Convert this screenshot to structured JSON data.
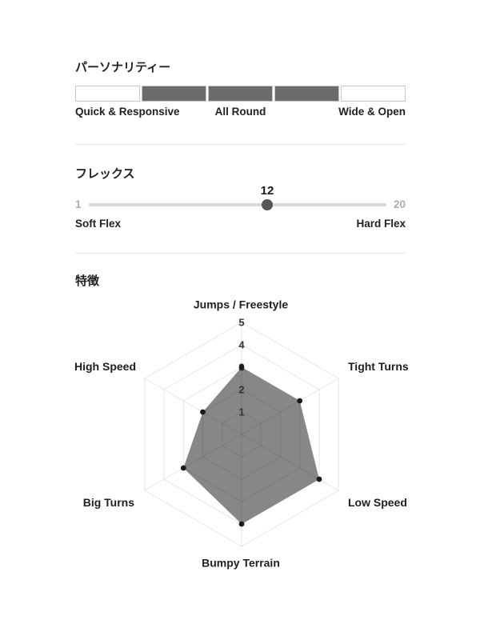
{
  "personality": {
    "title": "パーソナリティー",
    "segments": [
      false,
      true,
      true,
      true,
      false
    ],
    "filled_color": "#6b6b6b",
    "scale_labels": [
      "Quick & Responsive",
      "All Round",
      "Wide & Open"
    ]
  },
  "flex": {
    "title": "フレックス",
    "value": 12,
    "min": 1,
    "max": 20,
    "left_label": "Soft Flex",
    "right_label": "Hard Flex",
    "track_color": "#d8d8d8",
    "thumb_color": "#555555"
  },
  "features": {
    "title": "特徴"
  },
  "chart_data": {
    "type": "radar",
    "title": "特徴",
    "categories": [
      "Jumps / Freestyle",
      "Tight Turns",
      "Low Speed",
      "Bumpy Terrain",
      "Big Turns",
      "High Speed"
    ],
    "values": [
      3,
      3,
      4,
      4,
      3,
      2
    ],
    "ticks": [
      1,
      2,
      3,
      4,
      5
    ],
    "rmax": 5,
    "grid": true,
    "legend": false,
    "fill_color": "#878787",
    "grid_color": "rgba(0,0,0,0.10)",
    "dot_color": "#1a1a1a",
    "tick_color": "#333333"
  }
}
